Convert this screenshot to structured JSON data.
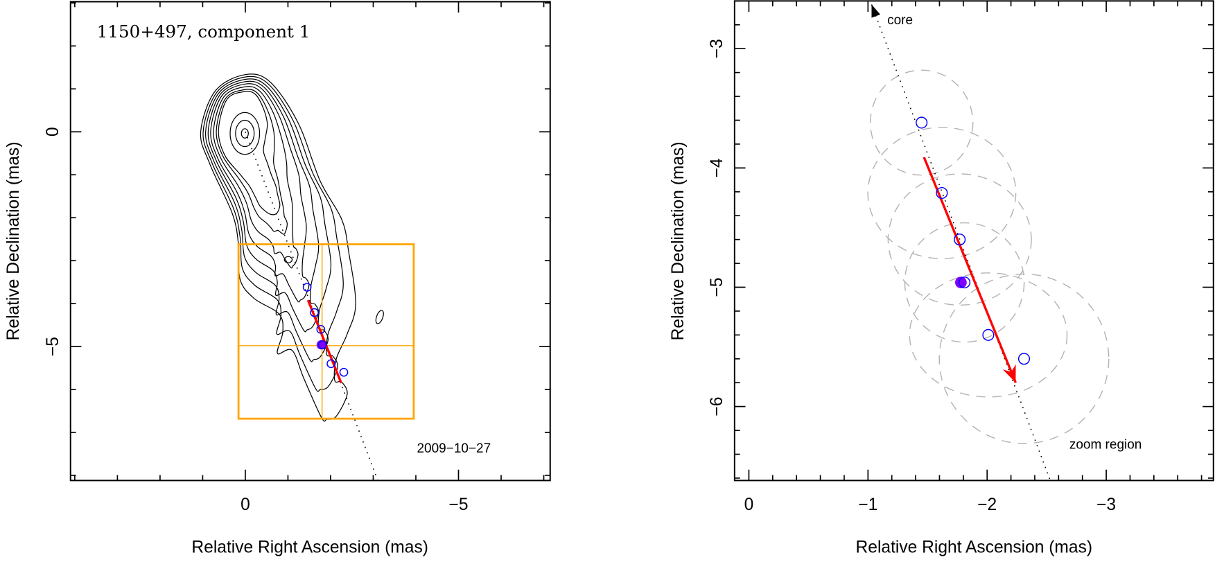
{
  "chart_data": [
    {
      "type": "scatter",
      "panel": "left",
      "title": "1150+497, component 1",
      "epoch_label": "2009−10−27",
      "xlabel": "Relative Right Ascension (mas)",
      "ylabel": "Relative Declination (mas)",
      "xlim": [
        4.1,
        -7.15
      ],
      "ylim": [
        -8.12,
        3.03
      ],
      "xticks": [
        {
          "value": 0,
          "label": "0"
        },
        {
          "value": -5,
          "label": "−5"
        }
      ],
      "yticks": [
        {
          "value": 0,
          "label": "0"
        },
        {
          "value": -5,
          "label": "−5"
        }
      ],
      "component_positions": [
        {
          "x": -1.45,
          "y": -3.62
        },
        {
          "x": -1.62,
          "y": -4.21
        },
        {
          "x": -1.77,
          "y": -4.6
        },
        {
          "x": -1.81,
          "y": -4.96
        },
        {
          "x": -2.01,
          "y": -5.4
        },
        {
          "x": -2.31,
          "y": -5.6
        }
      ],
      "current_epoch_position": {
        "x": -1.78,
        "y": -4.96
      },
      "velocity_vector": {
        "from": {
          "x": -1.47,
          "y": -3.92
        },
        "to": {
          "x": -2.25,
          "y": -5.85
        }
      },
      "core_line": {
        "from": {
          "x": 0,
          "y": 0
        },
        "to": {
          "x": -3.1,
          "y": -8.1
        }
      },
      "zoom_box": {
        "x": [
          0.16,
          -3.95
        ],
        "y": [
          -2.62,
          -6.68
        ],
        "cross": {
          "x": -1.8,
          "y": -4.98
        }
      },
      "colors": {
        "component": "#0000ff",
        "current": "#7f00ff",
        "vector": "#ff0000",
        "box": "#ffa500",
        "contour": "#000000"
      }
    },
    {
      "type": "scatter",
      "panel": "right",
      "xlabel": "Relative Right Ascension (mas)",
      "ylabel": "Relative Declination (mas)",
      "xlim": [
        0.12,
        -3.9
      ],
      "ylim": [
        -6.62,
        -2.6
      ],
      "xticks": [
        {
          "value": 0,
          "label": "0"
        },
        {
          "value": -1,
          "label": "−1"
        },
        {
          "value": -2,
          "label": "−2"
        },
        {
          "value": -3,
          "label": "−3"
        }
      ],
      "yticks": [
        {
          "value": -3,
          "label": "−3"
        },
        {
          "value": -4,
          "label": "−4"
        },
        {
          "value": -5,
          "label": "−5"
        },
        {
          "value": -6,
          "label": "−6"
        }
      ],
      "annotations": {
        "core": "core",
        "zoom": "zoom region"
      },
      "component_positions": [
        {
          "x": -1.45,
          "y": -3.62,
          "rx": 0.43,
          "ry": 0.44
        },
        {
          "x": -1.62,
          "y": -4.21,
          "rx": 0.62,
          "ry": 0.55
        },
        {
          "x": -1.77,
          "y": -4.6,
          "rx": 0.6,
          "ry": 0.55
        },
        {
          "x": -1.81,
          "y": -4.96,
          "rx": 0.5,
          "ry": 0.5
        },
        {
          "x": -2.01,
          "y": -5.4,
          "rx": 0.66,
          "ry": 0.52
        },
        {
          "x": -2.31,
          "y": -5.6,
          "rx": 0.71,
          "ry": 0.71
        }
      ],
      "current_epoch_position": {
        "x": -1.78,
        "y": -4.96
      },
      "velocity_vector": {
        "from": {
          "x": -1.47,
          "y": -3.91
        },
        "to": {
          "x": -2.24,
          "y": -5.8
        }
      },
      "core_line": {
        "from": {
          "x": -1.03,
          "y": -2.63
        },
        "to": {
          "x": -2.53,
          "y": -6.62
        }
      },
      "colors": {
        "component": "#0000ff",
        "current": "#7f00ff",
        "vector": "#ff0000",
        "ellipse": "#b4b4b4"
      }
    }
  ]
}
